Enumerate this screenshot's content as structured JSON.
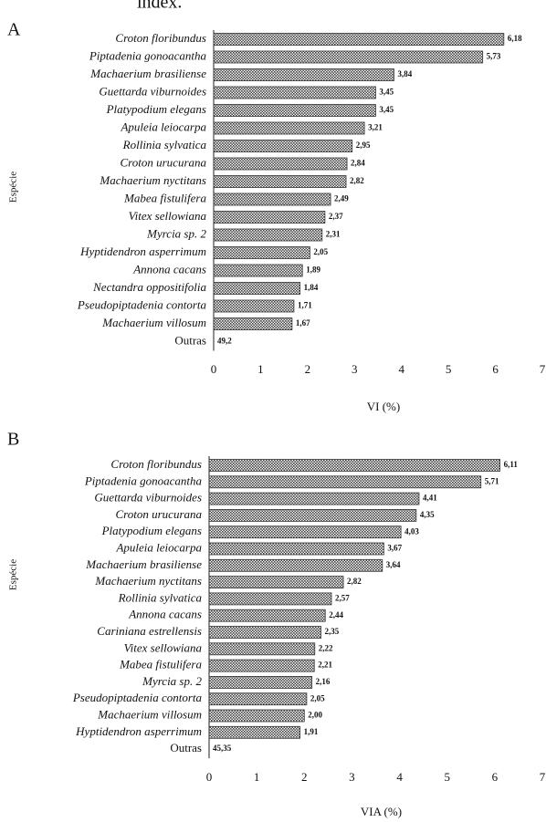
{
  "caption": "index.",
  "chart_data": [
    {
      "type": "bar",
      "panel": "A",
      "xlabel": "VI (%)",
      "ylabel": "Espécie",
      "color": "#555555",
      "categories": [
        "Croton floribundus",
        "Piptadenia gonoacantha",
        "Machaerium brasiliense",
        "Guettarda viburnoides",
        "Platypodium elegans",
        "Apuleia leiocarpa",
        "Rollinia sylvatica",
        "Croton urucurana",
        "Machaerium nyctitans",
        "Mabea fistulifera",
        "Vitex sellowiana",
        "Myrcia sp. 2",
        "Hyptidendron asperrimum",
        "Annona cacans",
        "Nectandra oppositifolia",
        "Pseudopiptadenia contorta",
        "Machaerium villosum",
        "Outras"
      ],
      "values": [
        6.18,
        5.73,
        3.84,
        3.45,
        3.45,
        3.21,
        2.95,
        2.84,
        2.82,
        2.49,
        2.37,
        2.31,
        2.05,
        1.89,
        1.84,
        1.71,
        1.67,
        49.2
      ],
      "value_labels": [
        "6,18",
        "5,73",
        "3,84",
        "3,45",
        "3,45",
        "3,21",
        "2,95",
        "2,84",
        "2,82",
        "2,49",
        "2,37",
        "2,31",
        "2,05",
        "1,89",
        "1,84",
        "1,71",
        "1,67",
        "49,2"
      ],
      "xlim": [
        0,
        7
      ],
      "xticks": [
        0,
        1,
        2,
        3,
        4,
        5,
        6,
        7
      ]
    },
    {
      "type": "bar",
      "panel": "B",
      "xlabel": "VIA (%)",
      "ylabel": "Espécie",
      "color": "#555555",
      "categories": [
        "Croton floribundus",
        "Piptadenia gonoacantha",
        "Guettarda viburnoides",
        "Croton urucurana",
        "Platypodium elegans",
        "Apuleia leiocarpa",
        "Machaerium brasiliense",
        "Machaerium nyctitans",
        "Rollinia sylvatica",
        "Annona cacans",
        "Cariniana estrellensis",
        "Vitex sellowiana",
        "Mabea fistulifera",
        "Myrcia sp. 2",
        "Pseudopiptadenia contorta",
        "Machaerium villosum",
        "Hyptidendron asperrimum",
        "Outras"
      ],
      "values": [
        6.11,
        5.71,
        4.41,
        4.35,
        4.03,
        3.67,
        3.64,
        2.82,
        2.57,
        2.44,
        2.35,
        2.22,
        2.21,
        2.16,
        2.05,
        2.0,
        1.91,
        45.35
      ],
      "value_labels": [
        "6,11",
        "5,71",
        "4,41",
        "4,35",
        "4,03",
        "3,67",
        "3,64",
        "2,82",
        "2,57",
        "2,44",
        "2,35",
        "2,22",
        "2,21",
        "2,16",
        "2,05",
        "2,00",
        "1,91",
        "45,35"
      ],
      "xlim": [
        0,
        7
      ],
      "xticks": [
        0,
        1,
        2,
        3,
        4,
        5,
        6,
        7
      ]
    }
  ]
}
